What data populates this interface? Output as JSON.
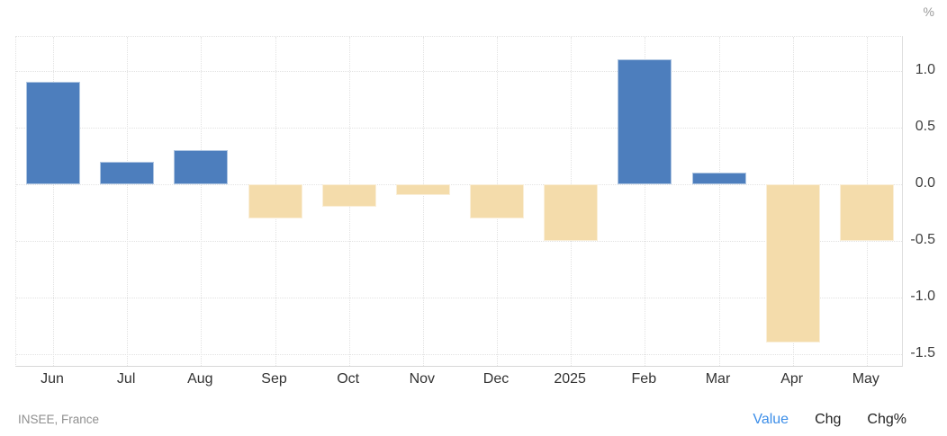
{
  "header": {
    "unit_label": "%"
  },
  "chart_data": {
    "type": "bar",
    "categories": [
      "Jun",
      "Jul",
      "Aug",
      "Sep",
      "Oct",
      "Nov",
      "Dec",
      "2025",
      "Feb",
      "Mar",
      "Apr",
      "May"
    ],
    "values": [
      0.9,
      0.2,
      0.3,
      -0.3,
      -0.2,
      -0.1,
      -0.3,
      -0.5,
      1.1,
      0.1,
      -1.4,
      -0.5
    ],
    "title": "",
    "xlabel": "",
    "ylabel": "%",
    "yticks": [
      1.0,
      0.5,
      0.0,
      -0.5,
      -1.0,
      -1.5
    ],
    "ylim": [
      -1.62,
      1.3
    ],
    "grid": true,
    "legend_position": "none",
    "positive_color": "#4d7ebd",
    "negative_color": "#f4dcab"
  },
  "footer": {
    "source": "INSEE, France",
    "tabs": [
      {
        "label": "Value",
        "active": true
      },
      {
        "label": "Chg",
        "active": false
      },
      {
        "label": "Chg%",
        "active": false
      }
    ]
  },
  "colors": {
    "positive_bar": "#4d7ebd",
    "negative_bar": "#f4dcab",
    "active_tab": "#3b8de8",
    "gridline": "#e2e2e2",
    "axis_line": "#dedede",
    "tick_text": "#3f3f3f",
    "muted_text": "#8f8f8f"
  }
}
